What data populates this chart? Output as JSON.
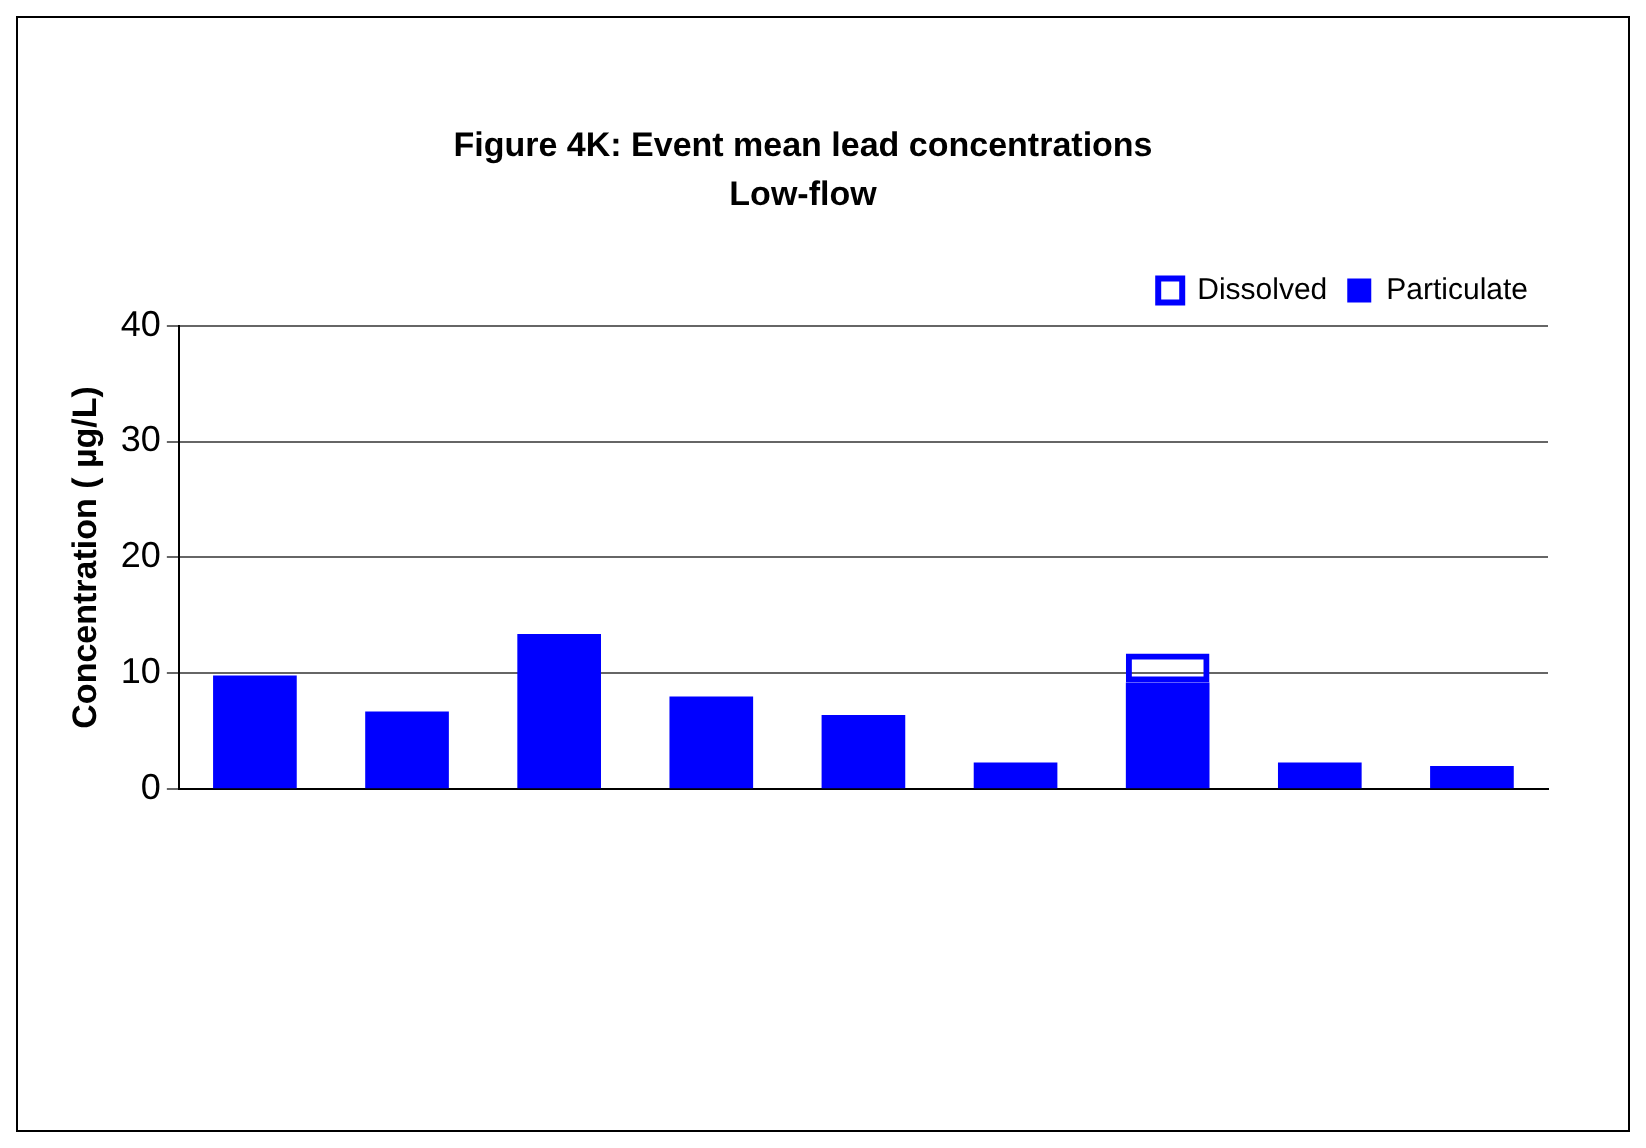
{
  "chart_data": {
    "type": "bar",
    "title": "Figure 4K: Event mean lead concentrations",
    "subtitle": "Low-flow",
    "ylabel": "Concentration ( µg/L)",
    "categories": [
      null,
      null,
      null,
      null,
      null,
      null,
      null,
      null,
      null
    ],
    "series": [
      {
        "name": "Particulate",
        "color": "#0000ff",
        "values": [
          9.8,
          6.7,
          13.4,
          8.0,
          6.4,
          2.3,
          9.2,
          2.3,
          2.0
        ]
      },
      {
        "name": "Dissolved",
        "color": "#0000ff",
        "values": [
          0,
          0,
          0,
          0,
          0,
          0,
          2.5,
          0,
          0
        ]
      }
    ],
    "stacked": true,
    "ylim": [
      0,
      40
    ],
    "yticks": [
      0,
      10,
      20,
      30,
      40
    ],
    "grid": "y",
    "legend": "top right"
  }
}
